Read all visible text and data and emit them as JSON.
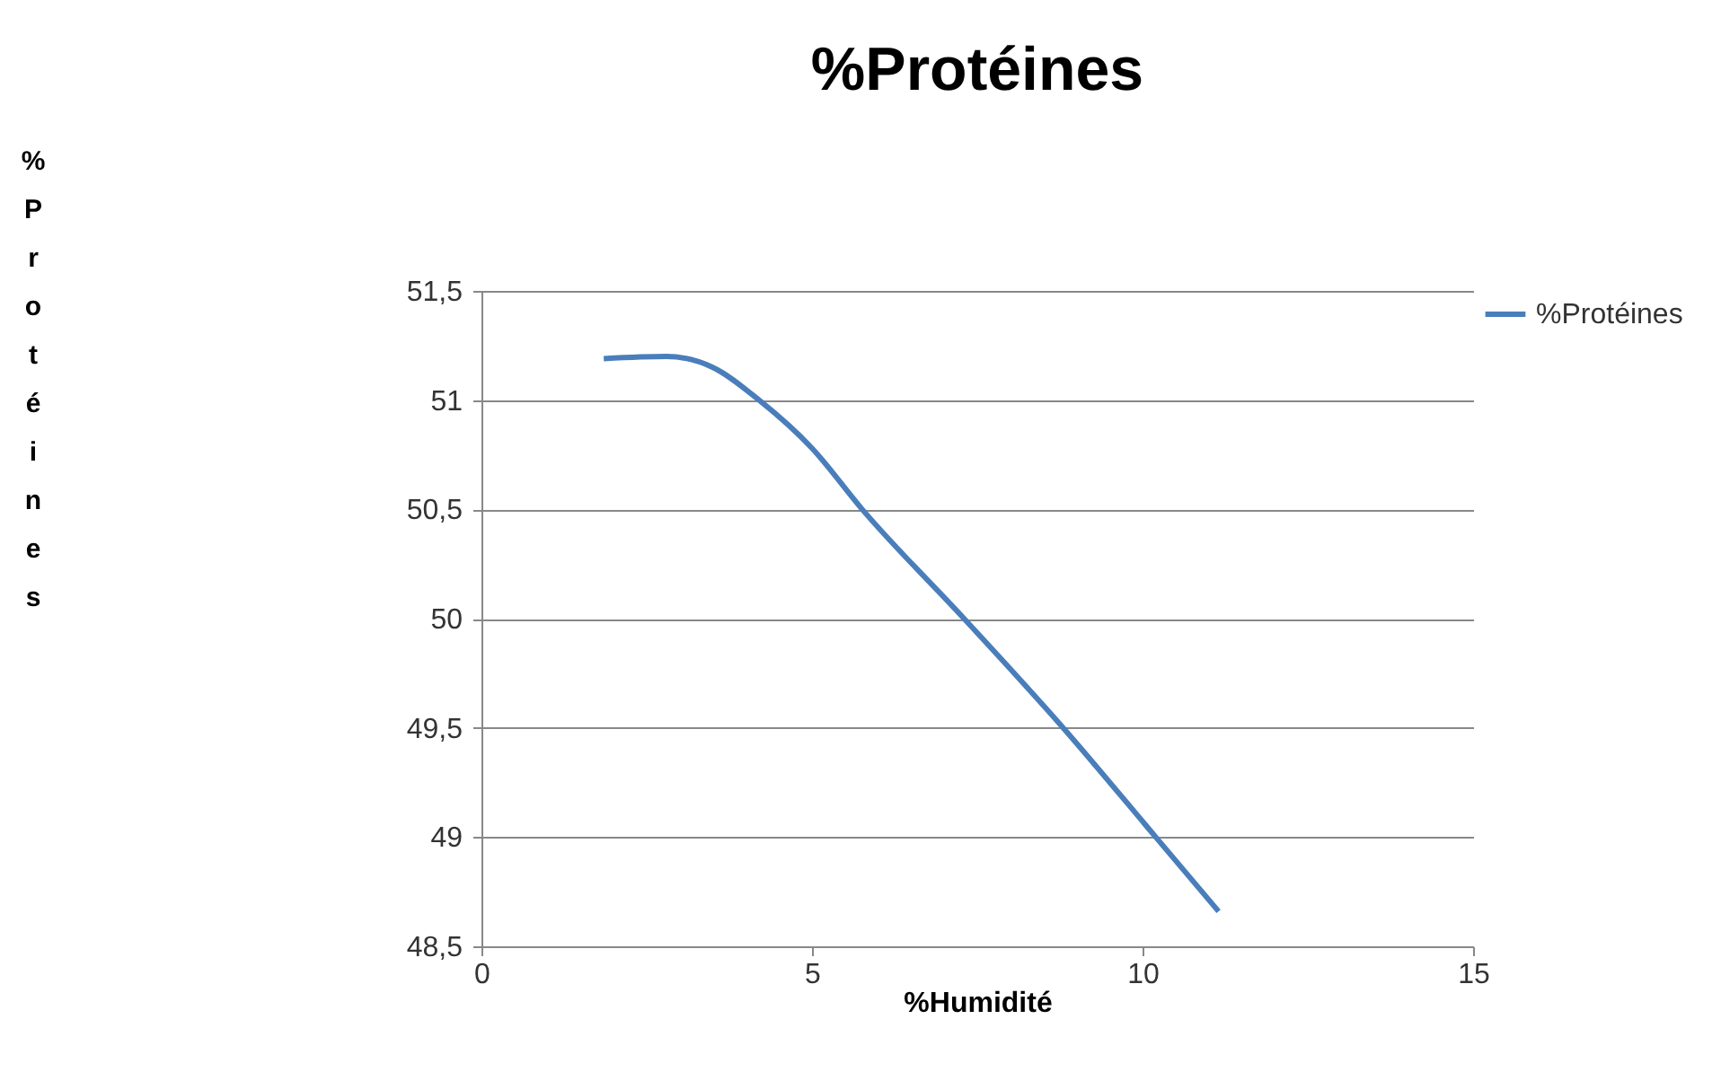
{
  "chart_data": {
    "type": "line",
    "title": "%Protéines",
    "xlabel": "%Humidité",
    "ylabel": "% Protéines",
    "series": [
      {
        "name": "%Protéines",
        "color": "#4a7ebb",
        "x": [
          1.85,
          2.8,
          3.5,
          4.2,
          5,
          5.76,
          7.3,
          8.8,
          10.2,
          11.15
        ],
        "values": [
          51.19,
          51.2,
          51.15,
          51.0,
          50.78,
          50.5,
          50.0,
          49.5,
          49.0,
          48.66
        ]
      }
    ],
    "xlim": [
      0,
      15
    ],
    "xticks": [
      0,
      5,
      10,
      15
    ],
    "ylim": [
      48.5,
      51.5
    ],
    "yticks": [
      {
        "value": 48.5,
        "label": "48,5"
      },
      49,
      {
        "value": 49.5,
        "label": "49,5"
      },
      50,
      {
        "value": 50.5,
        "label": "50,5"
      },
      51,
      {
        "value": 51.5,
        "label": "51,5"
      }
    ],
    "grid": "y",
    "legend": "right",
    "marker": "none",
    "line_style": "solid"
  }
}
